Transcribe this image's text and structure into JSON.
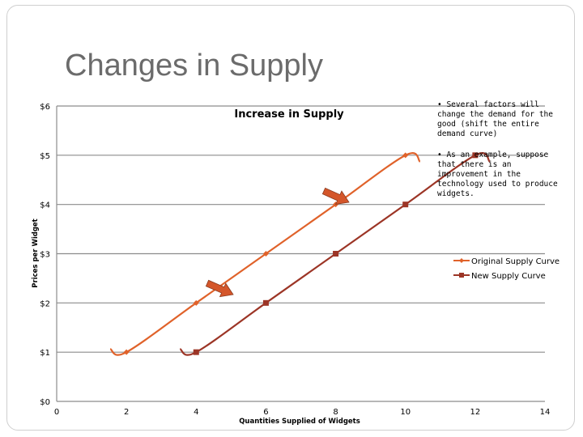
{
  "slide": {
    "title": "Changes in Supply"
  },
  "bullets": [
    "• Several factors will change the demand for the good (shift the entire demand curve)",
    "• As an example, suppose that there is an improvement in the technology used to produce widgets."
  ],
  "colors": {
    "original": "#e0622a",
    "new": "#9c3526",
    "arrow": "#d4562a",
    "grid": "#8c8c8c"
  },
  "chart_data": {
    "type": "line",
    "title": "Increase in Supply",
    "xlabel": "Quantities Supplied of Widgets",
    "ylabel": "Prices per Widget",
    "xlim": [
      0,
      14
    ],
    "ylim": [
      0,
      6
    ],
    "x_ticks": [
      "0",
      "2",
      "4",
      "6",
      "8",
      "10",
      "12",
      "14"
    ],
    "y_ticks": [
      "$0",
      "$1",
      "$2",
      "$3",
      "$4",
      "$5",
      "$6"
    ],
    "grid": true,
    "legend_position": "right",
    "smooth": true,
    "series": [
      {
        "name": "Original Supply Curve",
        "marker": "diamond",
        "points": [
          [
            2,
            1
          ],
          [
            4,
            2
          ],
          [
            6,
            3
          ],
          [
            8,
            4
          ],
          [
            10,
            5
          ]
        ]
      },
      {
        "name": "New Supply Curve",
        "marker": "square",
        "points": [
          [
            4,
            1
          ],
          [
            6,
            2
          ],
          [
            8,
            3
          ],
          [
            10,
            4
          ],
          [
            12,
            5
          ]
        ]
      }
    ]
  }
}
